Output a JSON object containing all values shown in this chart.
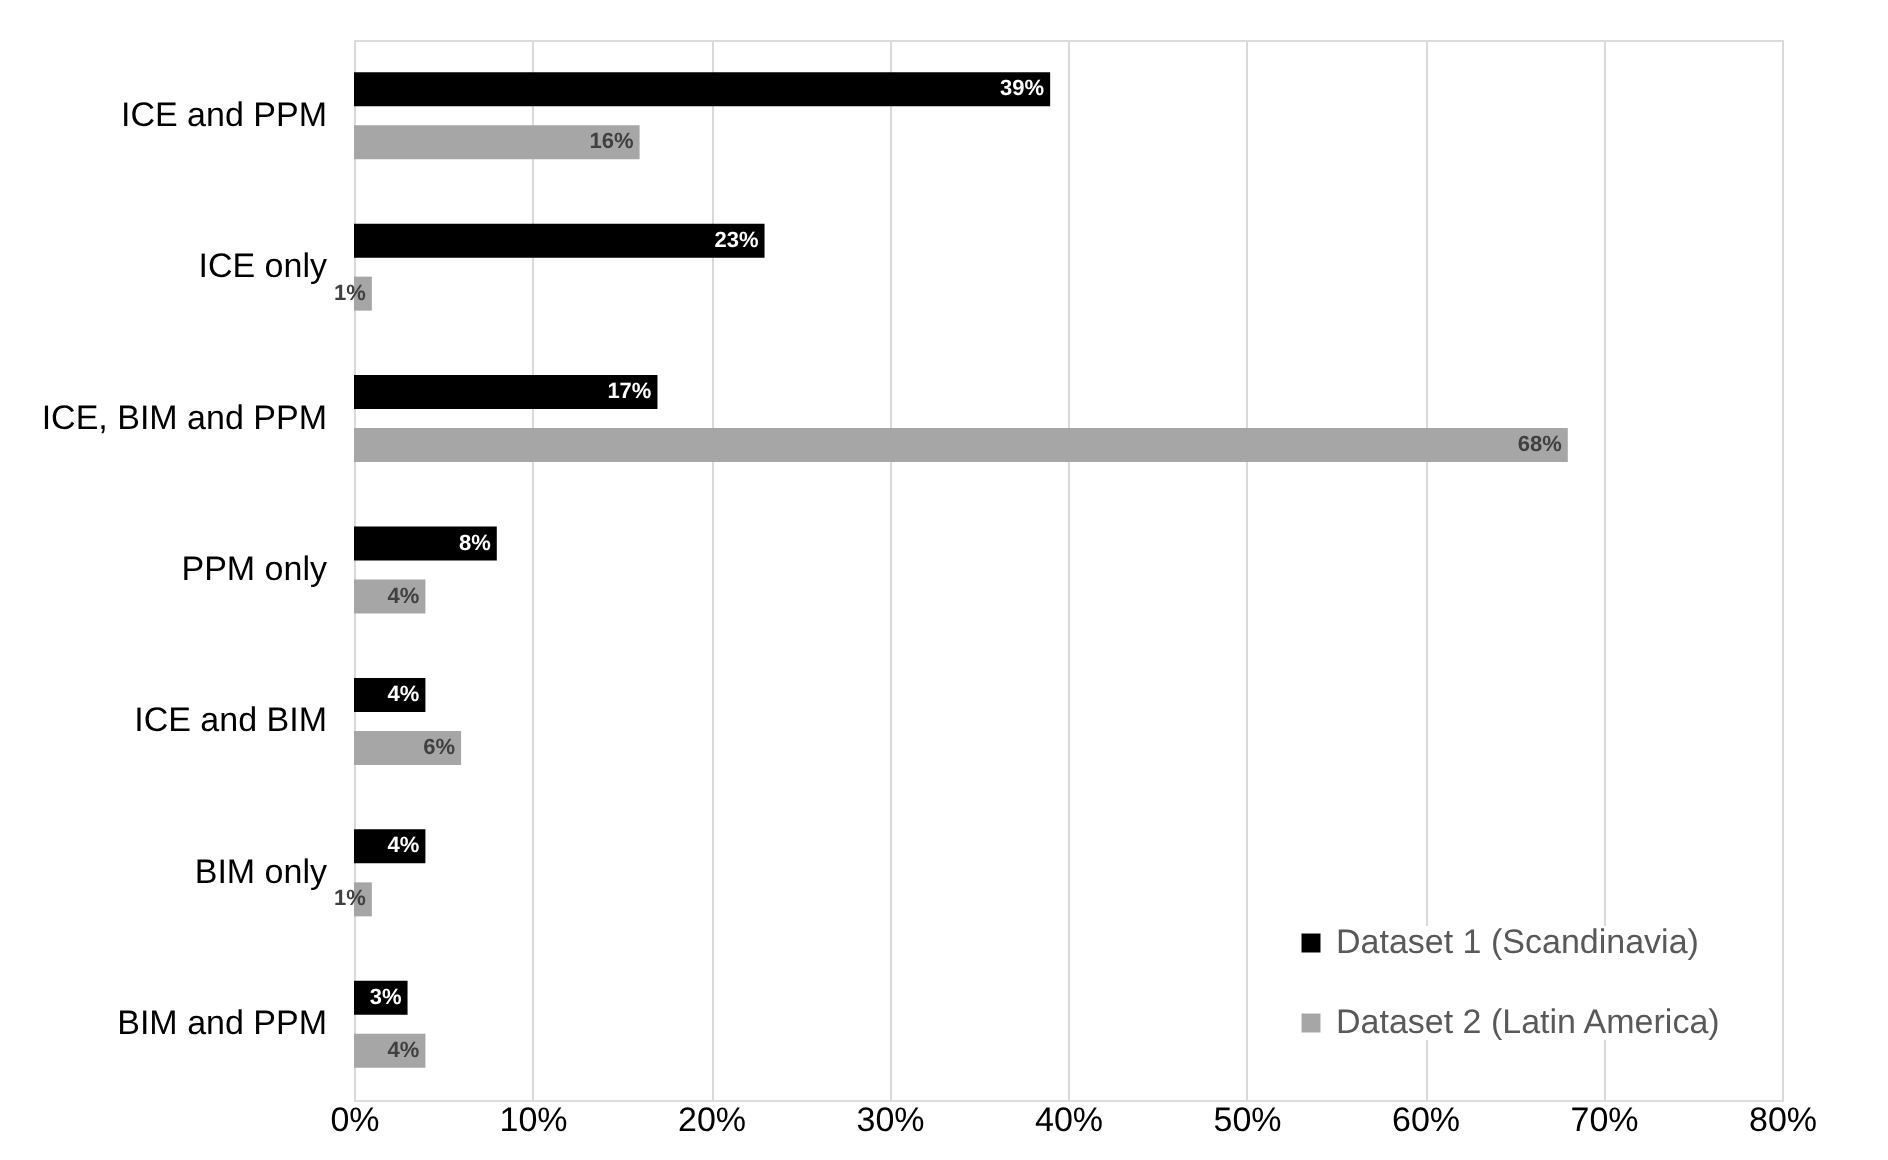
{
  "chart_data": {
    "type": "bar",
    "orientation": "horizontal",
    "categories": [
      "ICE and PPM",
      "ICE only",
      "ICE, BIM and PPM",
      "PPM only",
      "ICE and BIM",
      "BIM only",
      "BIM and PPM"
    ],
    "series": [
      {
        "name": "Dataset 1 (Scandinavia)",
        "color": "#000000",
        "values": [
          39,
          23,
          17,
          8,
          4,
          4,
          3
        ],
        "value_labels": [
          "39%",
          "23%",
          "17%",
          "8%",
          "4%",
          "4%",
          "3%"
        ]
      },
      {
        "name": "Dataset 2 (Latin America)",
        "color": "#a6a6a6",
        "values": [
          16,
          1,
          68,
          4,
          6,
          1,
          4
        ],
        "value_labels": [
          "16%",
          "1%",
          "68%",
          "4%",
          "6%",
          "1%",
          "4%"
        ]
      }
    ],
    "xlim": [
      0,
      80
    ],
    "xticks": [
      {
        "value": 0,
        "label": "0%"
      },
      {
        "value": 10,
        "label": "10%"
      },
      {
        "value": 20,
        "label": "20%"
      },
      {
        "value": 30,
        "label": "30%"
      },
      {
        "value": 40,
        "label": "40%"
      },
      {
        "value": 50,
        "label": "50%"
      },
      {
        "value": 60,
        "label": "60%"
      },
      {
        "value": 70,
        "label": "70%"
      },
      {
        "value": 80,
        "label": "80%"
      }
    ],
    "grid": "x",
    "legend": "bottom right"
  }
}
